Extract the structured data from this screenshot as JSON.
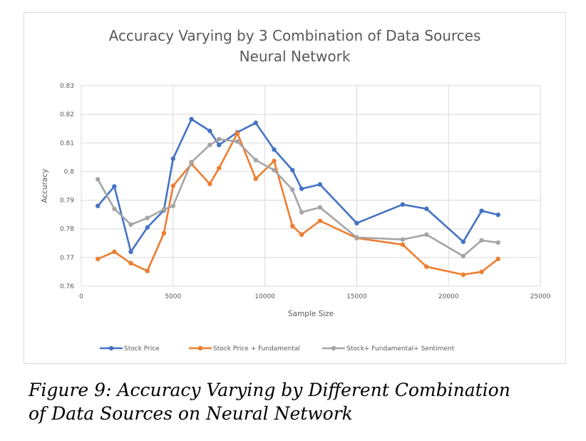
{
  "chart_data": {
    "type": "line",
    "title": [
      "Accuracy Varying by 3 Combination of Data Sources",
      "Neural Network"
    ],
    "xlabel": "Sample Size",
    "ylabel": "Accuracy",
    "xlim": [
      0,
      25000
    ],
    "ylim": [
      0.76,
      0.83
    ],
    "xticks": [
      "0",
      "5000",
      "10000",
      "15000",
      "20000",
      "25000"
    ],
    "yticks": [
      "0.76",
      "0.77",
      "0.78",
      "0.79",
      "0.8",
      "0.81",
      "0.82",
      "0.83"
    ],
    "grid": true,
    "legend_position": "bottom",
    "series": [
      {
        "name": "Stock Price",
        "color": "#4472c4",
        "x": [
          900,
          1800,
          2700,
          3600,
          4500,
          5000,
          6000,
          7000,
          7500,
          8500,
          9500,
          10500,
          11500,
          12000,
          13000,
          15000,
          17500,
          18800,
          20800,
          21800,
          22700
        ],
        "y": [
          0.788,
          0.7948,
          0.772,
          0.7805,
          0.7865,
          0.8045,
          0.8183,
          0.8142,
          0.8093,
          0.8137,
          0.817,
          0.8077,
          0.8005,
          0.794,
          0.7955,
          0.782,
          0.7885,
          0.787,
          0.7755,
          0.7863,
          0.7849
        ]
      },
      {
        "name": "Stock Price + Fundamental",
        "color": "#ed7d31",
        "x": [
          900,
          1800,
          2700,
          3600,
          4500,
          5000,
          6000,
          7000,
          7500,
          8500,
          9500,
          10500,
          11500,
          12000,
          13000,
          15000,
          17500,
          18800,
          20800,
          21800,
          22700
        ],
        "y": [
          0.7695,
          0.772,
          0.768,
          0.7653,
          0.7785,
          0.795,
          0.8027,
          0.7957,
          0.8012,
          0.8134,
          0.7975,
          0.8037,
          0.781,
          0.778,
          0.7828,
          0.7768,
          0.7745,
          0.7668,
          0.764,
          0.765,
          0.7695
        ]
      },
      {
        "name": "Stock+ Fundamental+ Sentiment",
        "color": "#a5a5a5",
        "x": [
          900,
          1800,
          2700,
          3600,
          4500,
          5000,
          6000,
          7000,
          7500,
          8500,
          9500,
          10500,
          11500,
          12000,
          13000,
          15000,
          17500,
          18800,
          20800,
          21800,
          22700
        ],
        "y": [
          0.7973,
          0.787,
          0.7815,
          0.7838,
          0.7868,
          0.788,
          0.8033,
          0.8093,
          0.8113,
          0.8105,
          0.804,
          0.8005,
          0.7937,
          0.7858,
          0.7875,
          0.777,
          0.7763,
          0.778,
          0.7705,
          0.776,
          0.7752
        ]
      }
    ]
  },
  "caption": [
    "Figure 9: Accuracy Varying by Different Combination",
    "of Data Sources on Neural Network"
  ]
}
